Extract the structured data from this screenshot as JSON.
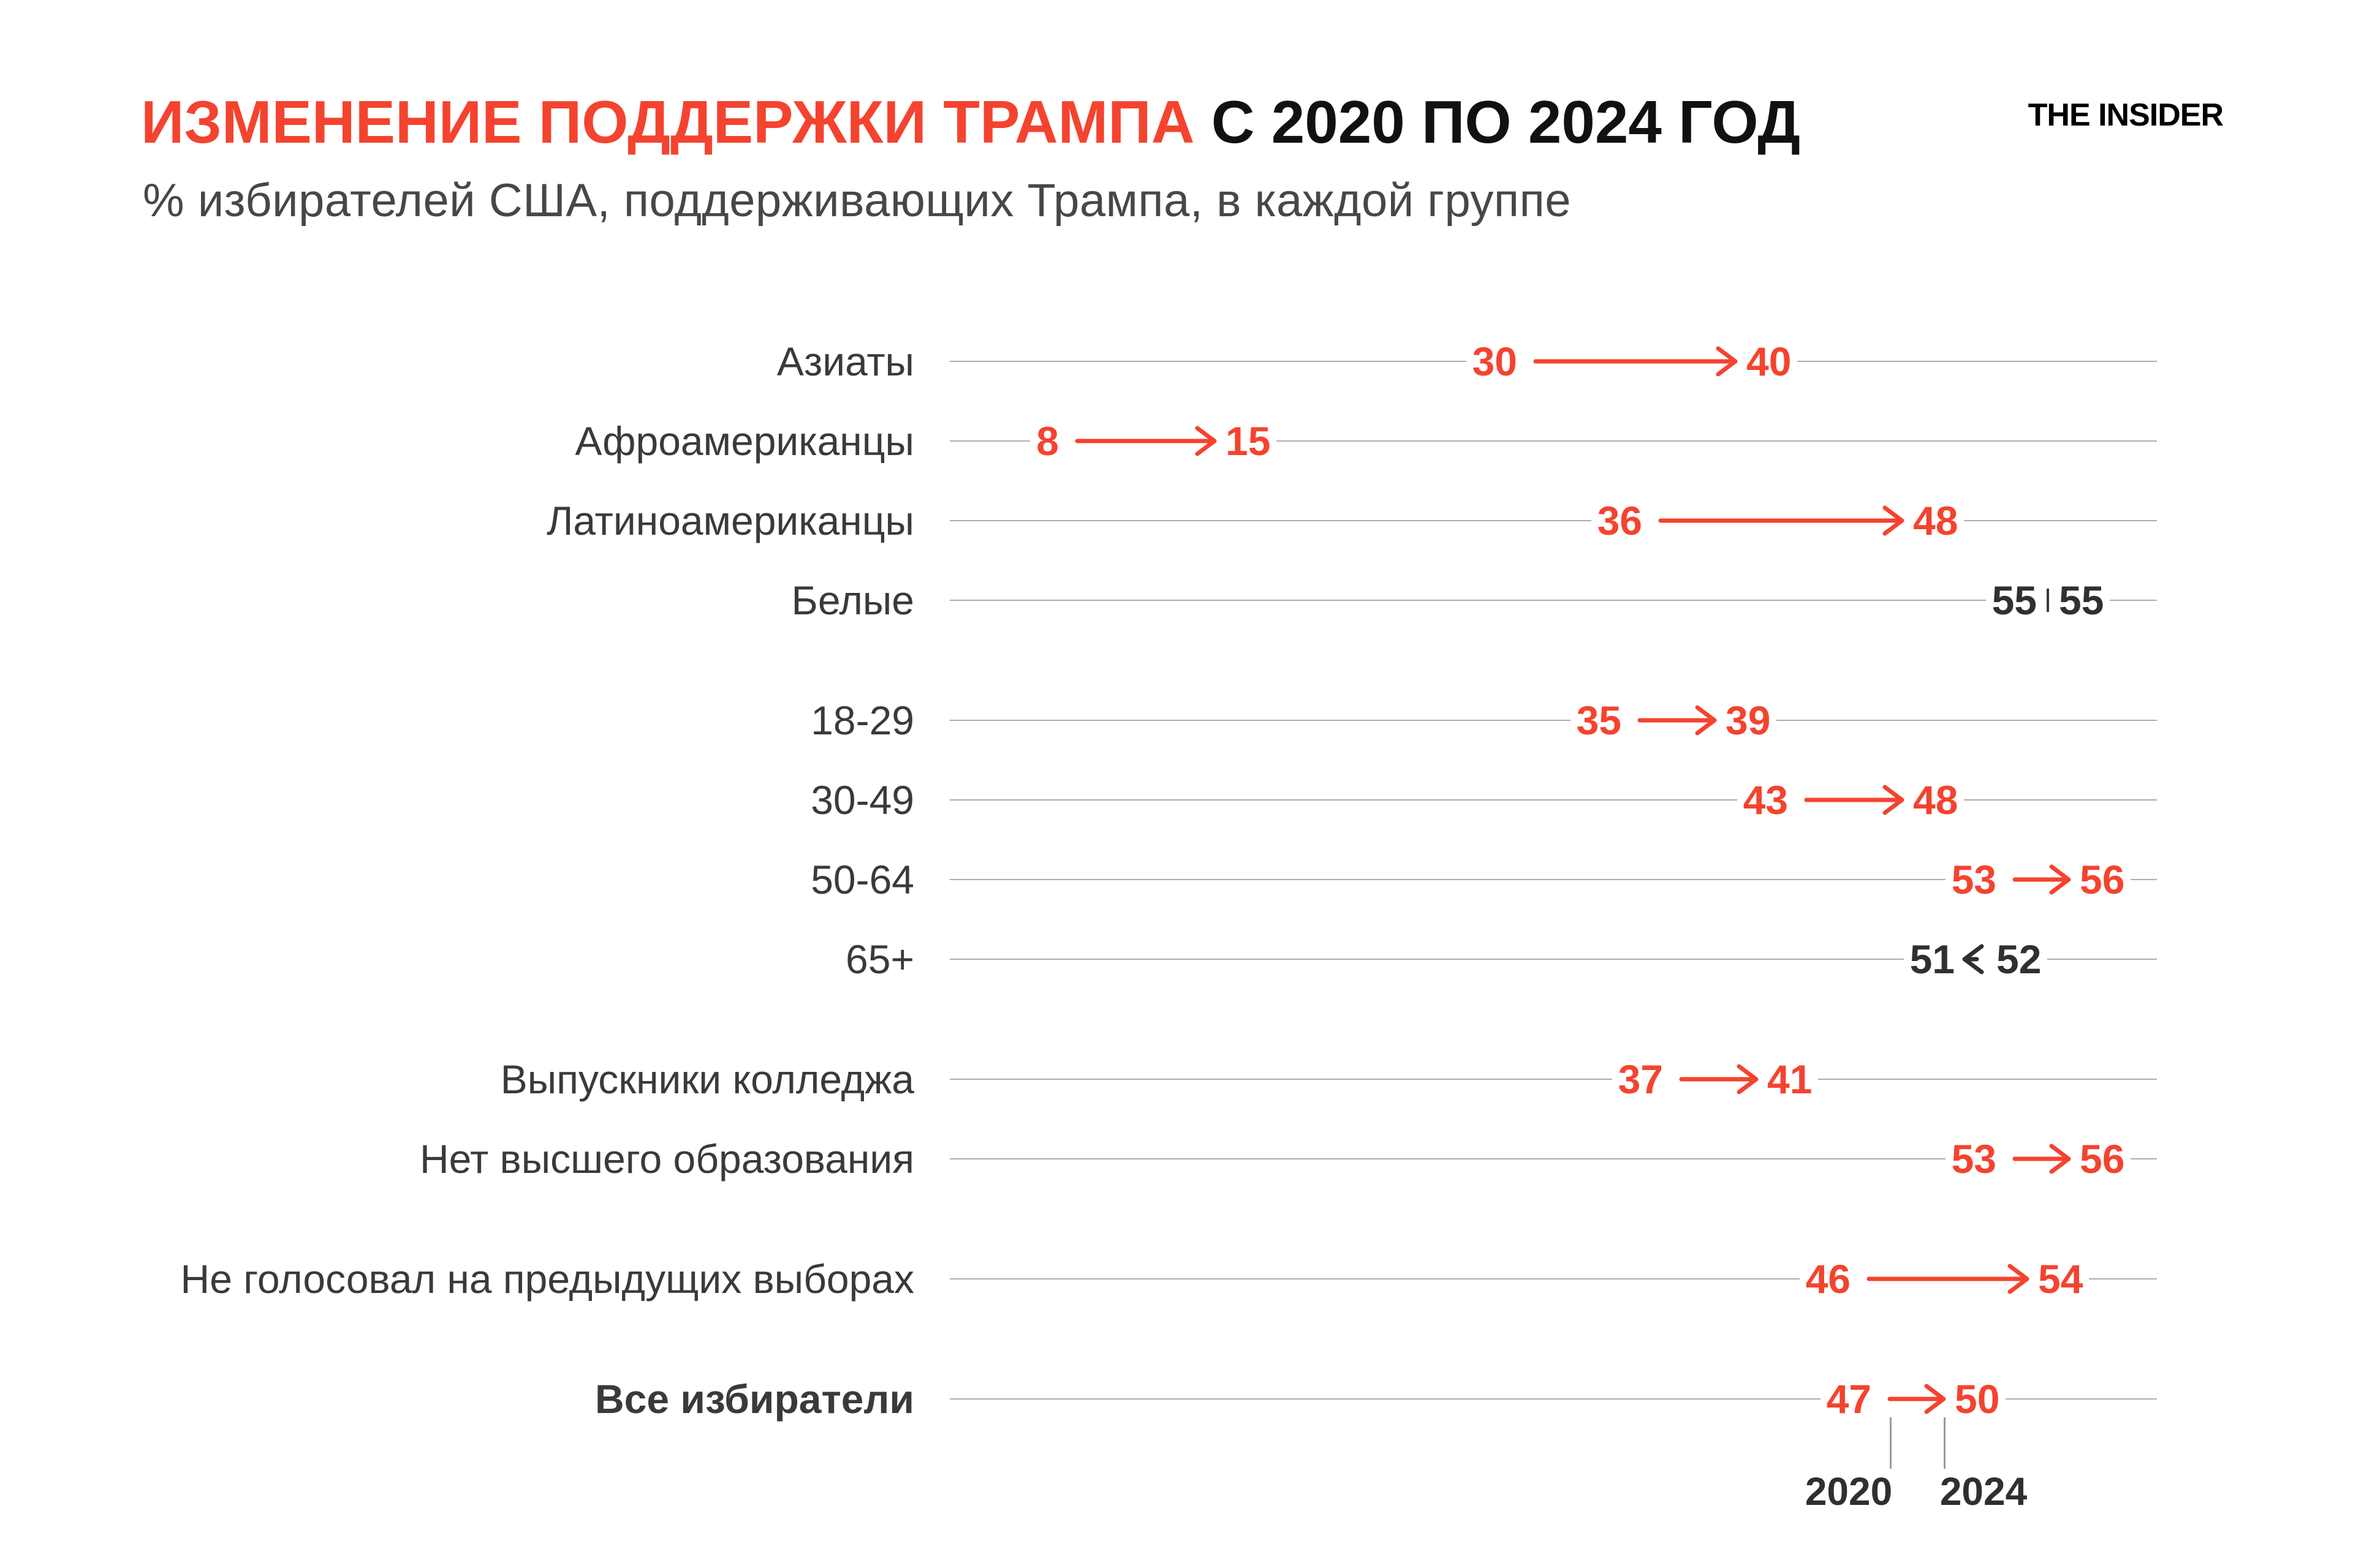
{
  "brand": "THE INSIDER",
  "header": {
    "title_highlight": "ИЗМЕНЕНИЕ ПОДДЕРЖКИ ТРАМПА",
    "title_rest": " С 2020 ПО 2024 ГОД",
    "subtitle": "% избирателей США, поддерживающих Трампа, в каждой группе"
  },
  "colors": {
    "accent": "#f4432f",
    "dark_value": "#303030",
    "title_text": "#111111",
    "subtitle_text": "#474747",
    "label_text": "#3a3a3a",
    "gridline": "#adadad",
    "axis_tick": "#9b9b9b"
  },
  "chart_data": {
    "type": "arrow-dumbbell",
    "unit": "%",
    "title": "ИЗМЕНЕНИЕ ПОДДЕРЖКИ ТРАМПА С 2020 ПО 2024 ГОД",
    "subtitle": "% избирателей США, поддерживающих Трампа, в каждой группе",
    "value_axis_range": [
      0,
      60
    ],
    "grid": "per-row horizontal lines",
    "axis": {
      "start_label": "2020",
      "end_label": "2024"
    },
    "rows": [
      {
        "label": "Азиаты",
        "v2020": 30,
        "v2024": 40,
        "direction": "up",
        "group": 0,
        "bold": false
      },
      {
        "label": "Афроамериканцы",
        "v2020": 8,
        "v2024": 15,
        "direction": "up",
        "group": 0,
        "bold": false
      },
      {
        "label": "Латиноамериканцы",
        "v2020": 36,
        "v2024": 48,
        "direction": "up",
        "group": 0,
        "bold": false
      },
      {
        "label": "Белые",
        "v2020": 55,
        "v2024": 55,
        "direction": "same",
        "group": 0,
        "bold": false
      },
      {
        "label": "18-29",
        "v2020": 35,
        "v2024": 39,
        "direction": "up",
        "group": 1,
        "bold": false
      },
      {
        "label": "30-49",
        "v2020": 43,
        "v2024": 48,
        "direction": "up",
        "group": 1,
        "bold": false
      },
      {
        "label": "50-64",
        "v2020": 53,
        "v2024": 56,
        "direction": "up",
        "group": 1,
        "bold": false
      },
      {
        "label": "65+",
        "v2020": 52,
        "v2024": 51,
        "direction": "down",
        "group": 1,
        "bold": false
      },
      {
        "label": "Выпускники колледжа",
        "v2020": 37,
        "v2024": 41,
        "direction": "up",
        "group": 2,
        "bold": false
      },
      {
        "label": "Нет высшего образования",
        "v2020": 53,
        "v2024": 56,
        "direction": "up",
        "group": 2,
        "bold": false
      },
      {
        "label": "Не голосовал на предыдущих выборах",
        "v2020": 46,
        "v2024": 54,
        "direction": "up",
        "group": 3,
        "bold": false
      },
      {
        "label": "Все избиратели",
        "v2020": 47,
        "v2024": 50,
        "direction": "up",
        "group": 4,
        "bold": true
      }
    ]
  }
}
